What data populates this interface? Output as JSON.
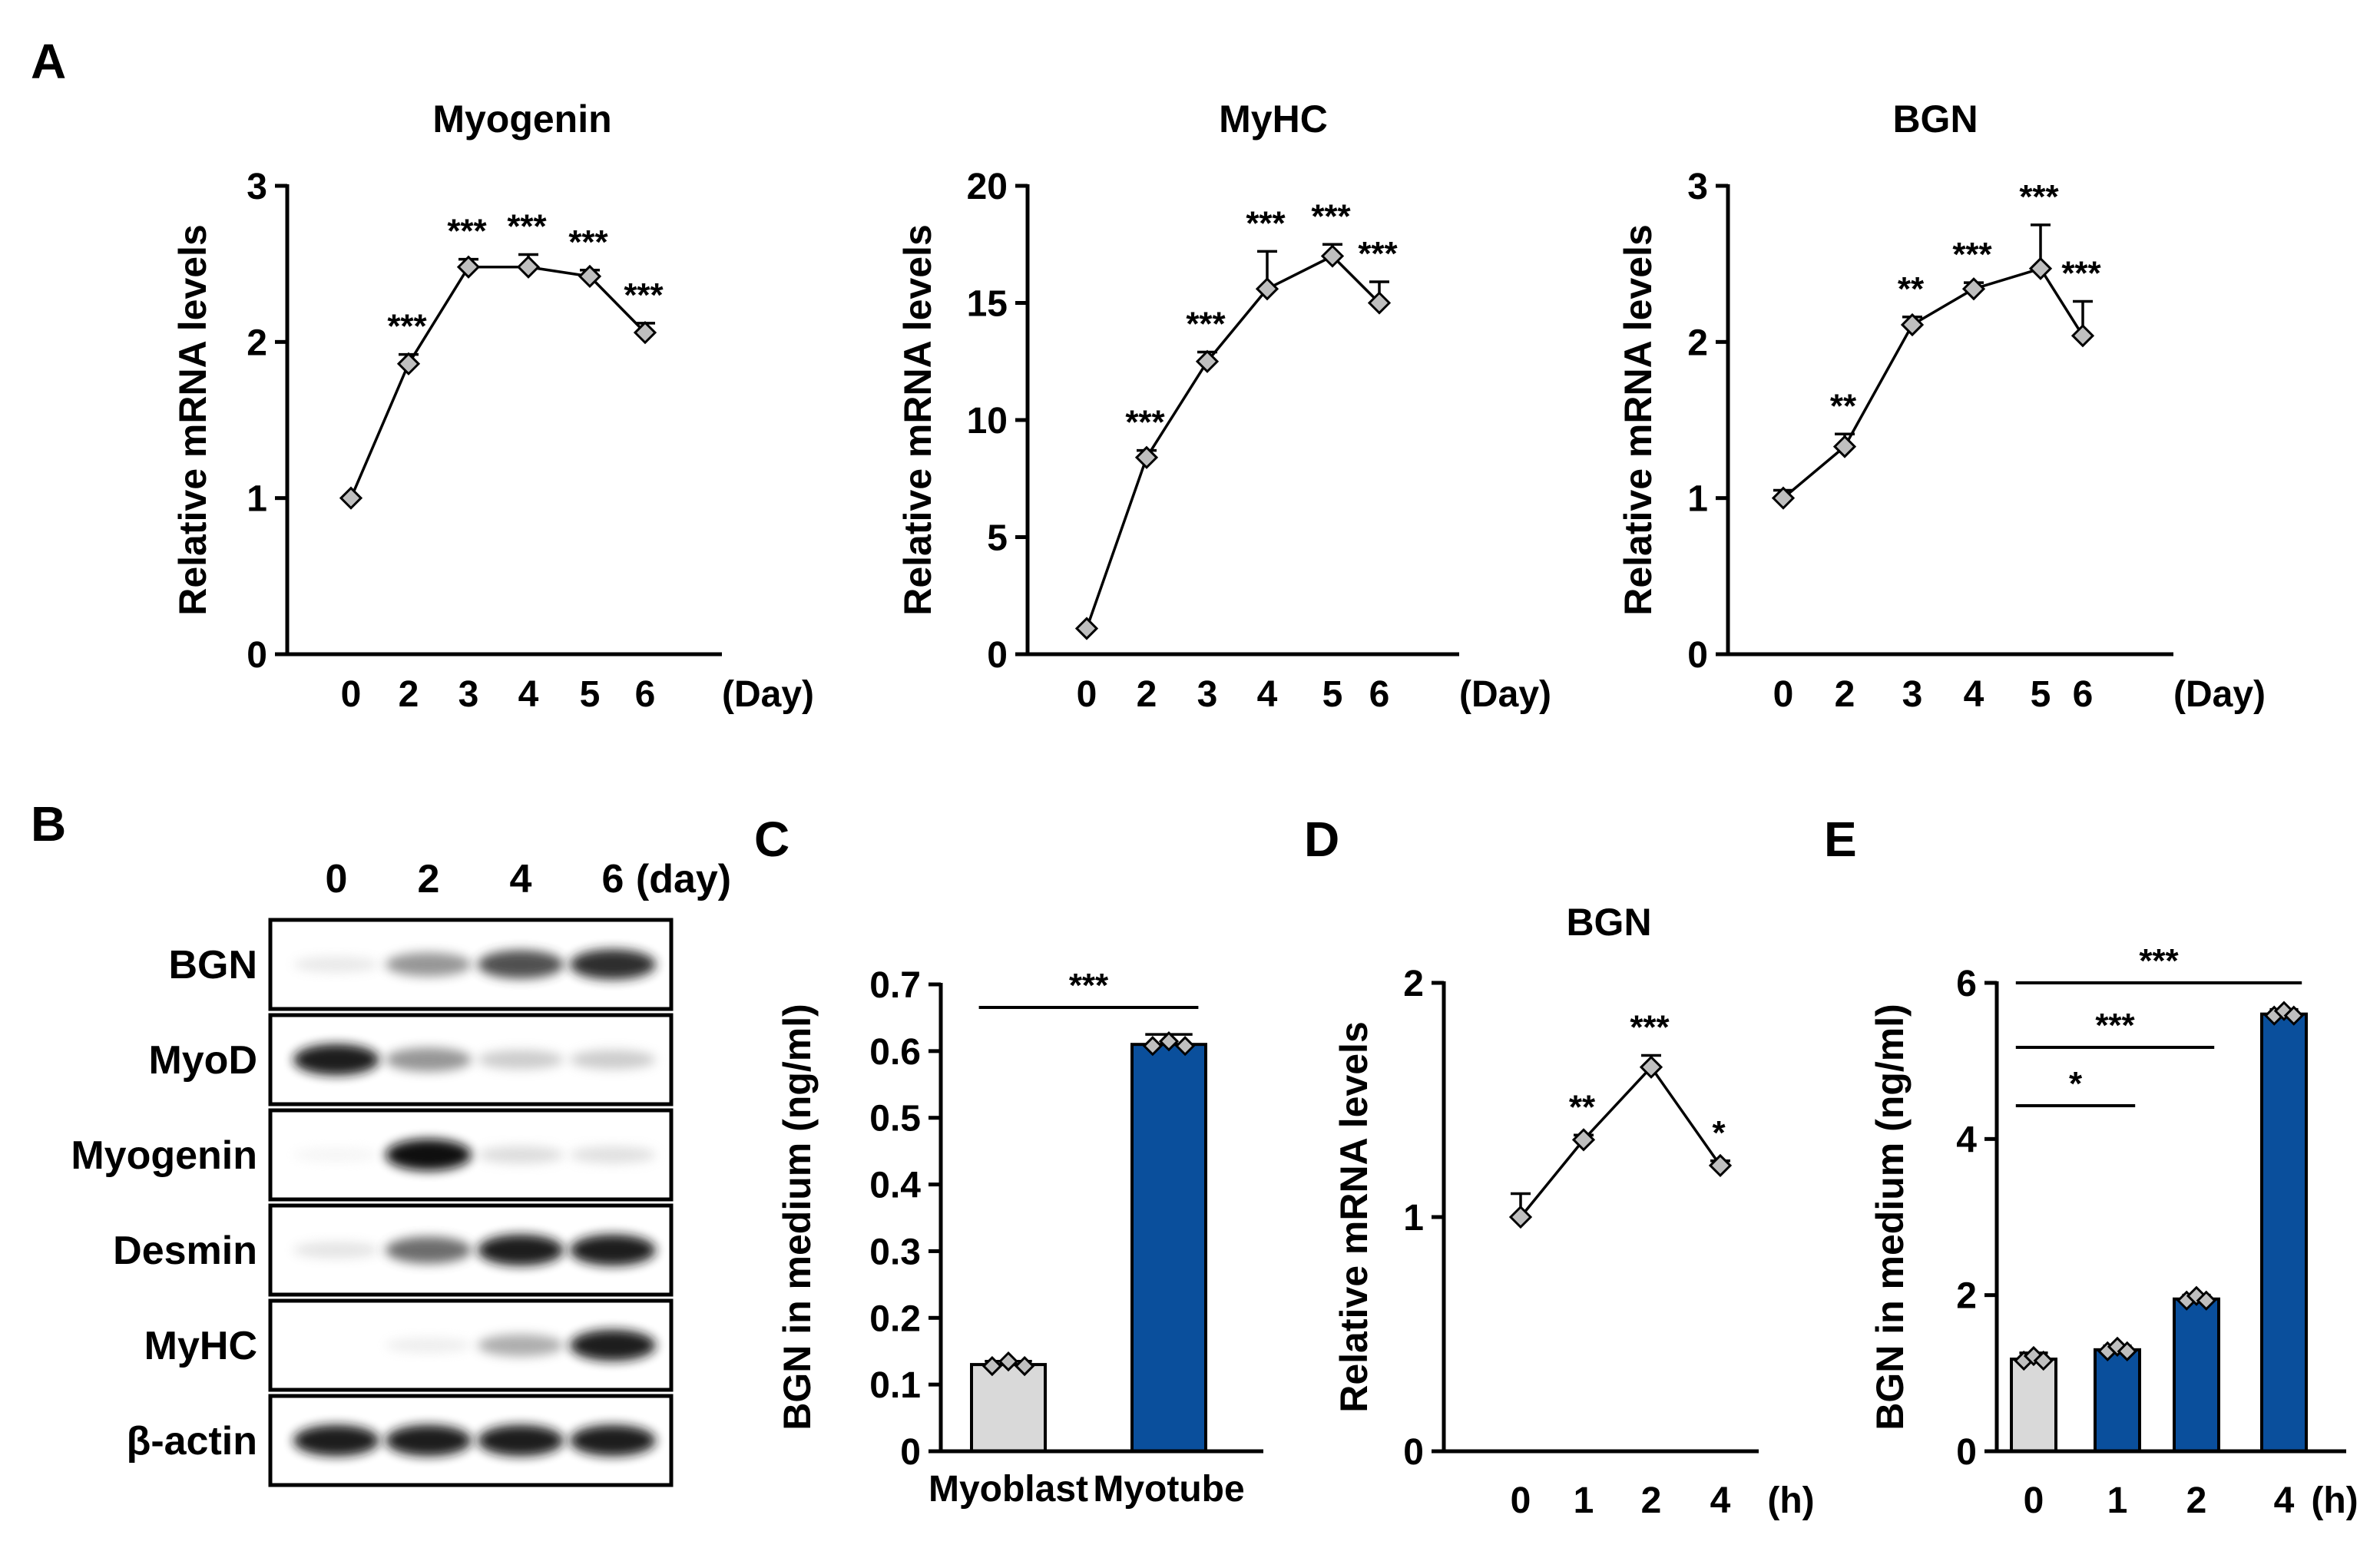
{
  "panel_letters": {
    "A": "A",
    "B": "B",
    "C": "C",
    "D": "D",
    "E": "E"
  },
  "chart_data": [
    {
      "panel": "A",
      "type": "line",
      "title": "Myogenin",
      "ylabel": "Relative mRNA levels",
      "ylim": [
        0,
        3
      ],
      "yticks": [
        "0",
        "1",
        "2",
        "3"
      ],
      "categories": [
        "0",
        "2",
        "3",
        "4",
        "5",
        "6"
      ],
      "unit": "(Day)",
      "values": [
        1.0,
        1.86,
        2.48,
        2.48,
        2.42,
        2.06
      ],
      "errors": [
        0.0,
        0.06,
        0.05,
        0.08,
        0.04,
        0.06
      ],
      "annotations": [
        "",
        "***",
        "***",
        "***",
        "***",
        "***"
      ]
    },
    {
      "panel": "A",
      "type": "line",
      "title": "MyHC",
      "ylabel": "Relative mRNA levels",
      "ylim": [
        0,
        20
      ],
      "yticks": [
        "0",
        "5",
        "10",
        "15",
        "20"
      ],
      "categories": [
        "0",
        "2",
        "3",
        "4",
        "5",
        "6"
      ],
      "unit": "(Day)",
      "values": [
        1.1,
        8.4,
        12.5,
        15.6,
        17.0,
        15.0
      ],
      "errors": [
        0.0,
        0.3,
        0.4,
        1.6,
        0.5,
        0.9
      ],
      "annotations": [
        "",
        "***",
        "***",
        "***",
        "***",
        "***"
      ]
    },
    {
      "panel": "A",
      "type": "line",
      "title": "BGN",
      "ylabel": "Relative mRNA levels",
      "ylim": [
        0,
        3
      ],
      "yticks": [
        "0",
        "1",
        "2",
        "3"
      ],
      "categories": [
        "0",
        "2",
        "3",
        "4",
        "5",
        "6"
      ],
      "unit": "(Day)",
      "values": [
        1.0,
        1.33,
        2.11,
        2.34,
        2.47,
        2.04
      ],
      "errors": [
        0.05,
        0.08,
        0.05,
        0.04,
        0.28,
        0.22
      ],
      "annotations": [
        "",
        "**",
        "**",
        "***",
        "***",
        "***"
      ]
    },
    {
      "panel": "C",
      "type": "bar",
      "title": "",
      "ylabel": "BGN in medium (ng/ml)",
      "ylim": [
        0,
        0.7
      ],
      "yticks": [
        "0",
        "0.1",
        "0.2",
        "0.3",
        "0.4",
        "0.5",
        "0.6",
        "0.7"
      ],
      "categories": [
        "Myoblast",
        "Myotube"
      ],
      "values": [
        0.13,
        0.61
      ],
      "errors": [
        0.005,
        0.015
      ],
      "colors": [
        "#d9d9d9",
        "#0a4f9c"
      ],
      "comparisons": [
        {
          "from": 0,
          "to": 1,
          "label": "***"
        }
      ]
    },
    {
      "panel": "D",
      "type": "line",
      "title": "BGN",
      "ylabel": "Relative mRNA levels",
      "ylim": [
        0,
        2
      ],
      "yticks": [
        "0",
        "1",
        "2"
      ],
      "categories": [
        "0",
        "1",
        "2",
        "4"
      ],
      "unit": "(h)",
      "values": [
        1.0,
        1.33,
        1.64,
        1.22
      ],
      "errors": [
        0.1,
        0.02,
        0.05,
        0.02
      ],
      "annotations": [
        "",
        "**",
        "***",
        "*"
      ]
    },
    {
      "panel": "E",
      "type": "bar",
      "title": "",
      "ylabel": "BGN in medium (ng/ml)",
      "ylim": [
        0,
        6
      ],
      "yticks": [
        "0",
        "2",
        "4",
        "6"
      ],
      "categories": [
        "0",
        "1",
        "2",
        "4"
      ],
      "unit": "(h)",
      "values": [
        1.18,
        1.3,
        1.95,
        5.6
      ],
      "errors": [
        0.08,
        0.05,
        0.05,
        0.06
      ],
      "colors": [
        "#d9d9d9",
        "#0a4f9c",
        "#0a4f9c",
        "#0a4f9c"
      ],
      "comparisons": [
        {
          "from": 0,
          "to": 1,
          "label": "*"
        },
        {
          "from": 0,
          "to": 2,
          "label": "***"
        },
        {
          "from": 0,
          "to": 3,
          "label": "***"
        }
      ]
    }
  ],
  "western_blot": {
    "columns": [
      "0",
      "2",
      "4",
      "6"
    ],
    "unit": "(day)",
    "rows": [
      {
        "label": "BGN",
        "intensity": [
          0.12,
          0.55,
          0.8,
          0.9
        ]
      },
      {
        "label": "MyoD",
        "intensity": [
          0.95,
          0.55,
          0.3,
          0.3
        ]
      },
      {
        "label": "Myogenin",
        "intensity": [
          0.02,
          0.98,
          0.2,
          0.18
        ]
      },
      {
        "label": "Desmin",
        "intensity": [
          0.15,
          0.7,
          0.95,
          0.95
        ]
      },
      {
        "label": "MyHC",
        "intensity": [
          0.0,
          0.08,
          0.45,
          0.95
        ]
      },
      {
        "label": "β-actin",
        "intensity": [
          0.95,
          0.95,
          0.95,
          0.95
        ]
      }
    ]
  }
}
